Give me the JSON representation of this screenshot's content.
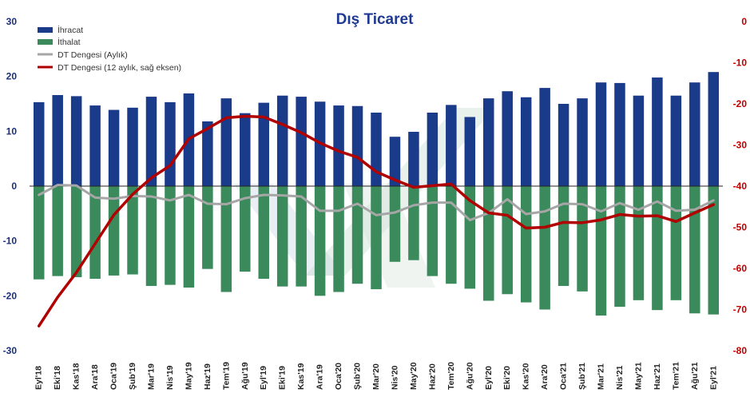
{
  "chart_data": {
    "type": "bar",
    "title": "Dış Ticaret",
    "categories": [
      "Eyl'18",
      "Eki'18",
      "Kas'18",
      "Ara'18",
      "Oca'19",
      "Şub'19",
      "Mar'19",
      "Nis'19",
      "May'19",
      "Haz'19",
      "Tem'19",
      "Ağu'19",
      "Eyl'19",
      "Eki'19",
      "Kas'19",
      "Ara'19",
      "Oca'20",
      "Şub'20",
      "Mar'20",
      "Nis'20",
      "May'20",
      "Haz'20",
      "Tem'20",
      "Ağu'20",
      "Eyl'20",
      "Eki'20",
      "Kas'20",
      "Ara'20",
      "Oca'21",
      "Şub'21",
      "Mar'21",
      "Nis'21",
      "May'21",
      "Haz'21",
      "Tem'21",
      "Ağu'21",
      "Eyl'21"
    ],
    "y_left": {
      "ylim": [
        -30,
        30
      ],
      "ticks": [
        30,
        20,
        10,
        0,
        -10,
        -20,
        -30
      ]
    },
    "y_right": {
      "ylim": [
        -80,
        0
      ],
      "ticks": [
        0,
        -10,
        -20,
        -30,
        -40,
        -50,
        -60,
        -70,
        -80
      ]
    },
    "series": [
      {
        "name": "İhracat",
        "type": "bar",
        "axis": "left",
        "color": "#1a3a8a",
        "values": [
          15.3,
          16.6,
          16.4,
          14.7,
          13.9,
          14.3,
          16.3,
          15.3,
          16.9,
          11.8,
          16.0,
          13.3,
          15.2,
          16.5,
          16.3,
          15.4,
          14.7,
          14.6,
          13.4,
          9.0,
          9.9,
          13.4,
          14.8,
          12.6,
          16.0,
          17.3,
          16.2,
          17.9,
          15.0,
          16.0,
          18.9,
          18.8,
          16.5,
          19.8,
          16.5,
          18.9,
          20.8
        ]
      },
      {
        "name": "İthalat",
        "type": "bar",
        "axis": "left",
        "color": "#3a8a5c",
        "values": [
          -17.0,
          -16.4,
          -16.6,
          -16.9,
          -16.3,
          -16.1,
          -18.2,
          -18.0,
          -18.5,
          -15.1,
          -19.3,
          -15.6,
          -16.9,
          -18.3,
          -18.3,
          -20.0,
          -19.3,
          -17.8,
          -18.8,
          -13.8,
          -13.5,
          -16.4,
          -17.8,
          -18.7,
          -20.9,
          -19.7,
          -21.2,
          -22.5,
          -18.2,
          -19.2,
          -23.6,
          -22.0,
          -20.8,
          -22.6,
          -20.8,
          -23.2,
          -23.4
        ]
      },
      {
        "name": "DT Dengesi (Aylık)",
        "type": "line",
        "axis": "left",
        "color": "#a6a6a6",
        "values": [
          -1.6,
          0.2,
          0.1,
          -2.1,
          -2.3,
          -1.8,
          -1.9,
          -2.6,
          -1.6,
          -3.2,
          -3.3,
          -2.2,
          -1.6,
          -1.7,
          -1.9,
          -4.5,
          -4.5,
          -3.2,
          -5.3,
          -4.8,
          -3.5,
          -3.0,
          -3.0,
          -6.2,
          -4.9,
          -2.4,
          -5.1,
          -4.6,
          -3.2,
          -3.3,
          -4.6,
          -3.1,
          -4.3,
          -2.8,
          -4.5,
          -4.3,
          -2.6
        ]
      },
      {
        "name": "DT Dengesi (12 aylık, sağ eksen)",
        "type": "line",
        "axis": "right",
        "color": "#b00000",
        "values": [
          -74.0,
          -67.0,
          -61.0,
          -54.0,
          -47.0,
          -42.0,
          -38.0,
          -35.0,
          -28.5,
          -26.0,
          -23.4,
          -23.0,
          -23.2,
          -25.0,
          -27.0,
          -29.5,
          -31.5,
          -33.0,
          -36.5,
          -38.5,
          -40.3,
          -39.9,
          -39.5,
          -43.5,
          -46.5,
          -47.1,
          -50.2,
          -50.0,
          -48.8,
          -48.9,
          -48.2,
          -46.9,
          -47.3,
          -47.2,
          -48.6,
          -46.5,
          -44.5
        ]
      }
    ],
    "legend_position": "top-left",
    "grid": false
  }
}
